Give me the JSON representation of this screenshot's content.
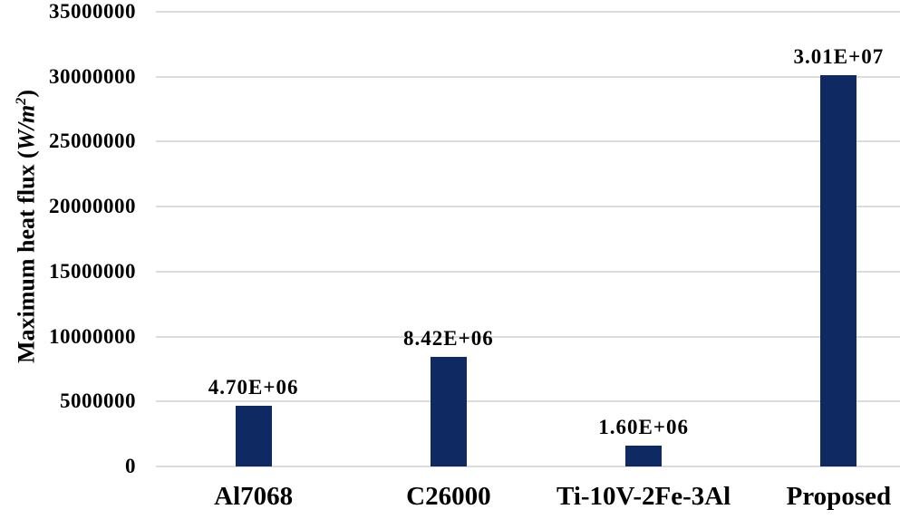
{
  "chart_data": {
    "type": "bar",
    "title": "",
    "categories": [
      "Al7068",
      "C26000",
      "Ti-10V-2Fe-3Al",
      "Proposed"
    ],
    "values": [
      4700000,
      8420000,
      1600000,
      30100000
    ],
    "data_labels": [
      "4.70E+06",
      "8.42E+06",
      "1.60E+06",
      "3.01E+07"
    ],
    "xlabel": "",
    "ylabel": "Maximum heat flux (W/m²)",
    "ylabel_parts": {
      "prefix": "Maximum heat flux (",
      "unit": "W/m",
      "exponent": "2",
      "suffix": ")"
    },
    "ylim": [
      0,
      35000000
    ],
    "ytick_step": 5000000,
    "yticks": [
      "0",
      "5000000",
      "10000000",
      "15000000",
      "20000000",
      "25000000",
      "30000000",
      "35000000"
    ],
    "grid": "horizontal",
    "legend_position": "none",
    "colors": {
      "bar": "#0f2a63",
      "gridline": "#dcdcdc",
      "text": "#000000",
      "background": "#ffffff"
    }
  }
}
